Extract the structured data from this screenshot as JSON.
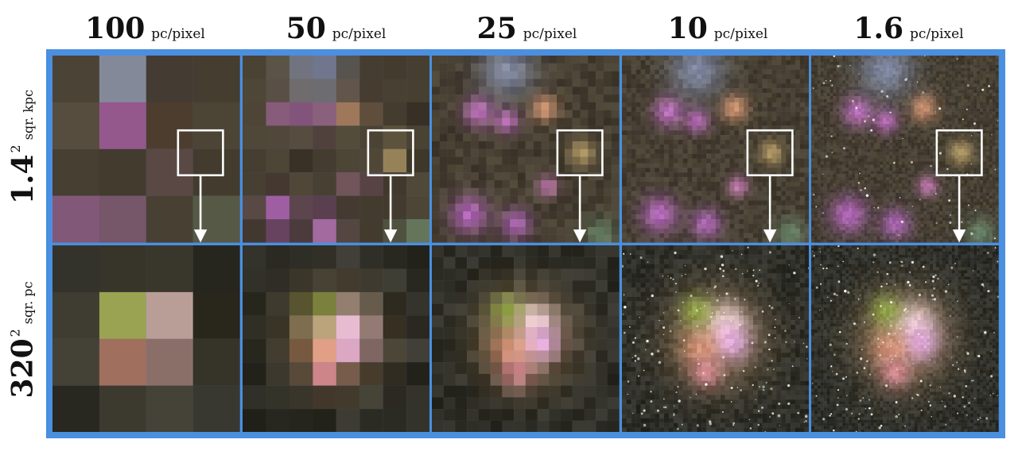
{
  "columns": [
    {
      "value": "100",
      "unit": "pc/pixel"
    },
    {
      "value": "50",
      "unit": "pc/pixel"
    },
    {
      "value": "25",
      "unit": "pc/pixel"
    },
    {
      "value": "10",
      "unit": "pc/pixel"
    },
    {
      "value": "1.6",
      "unit": "pc/pixel"
    }
  ],
  "rows": [
    {
      "value": "1.4",
      "exponent": "2",
      "unit": "sqr. kpc"
    },
    {
      "value": "320",
      "exponent": "2",
      "unit": "sqr. pc"
    }
  ],
  "colors": {
    "frame": "#4a8fe0",
    "zoom_box": "#ffffff"
  }
}
